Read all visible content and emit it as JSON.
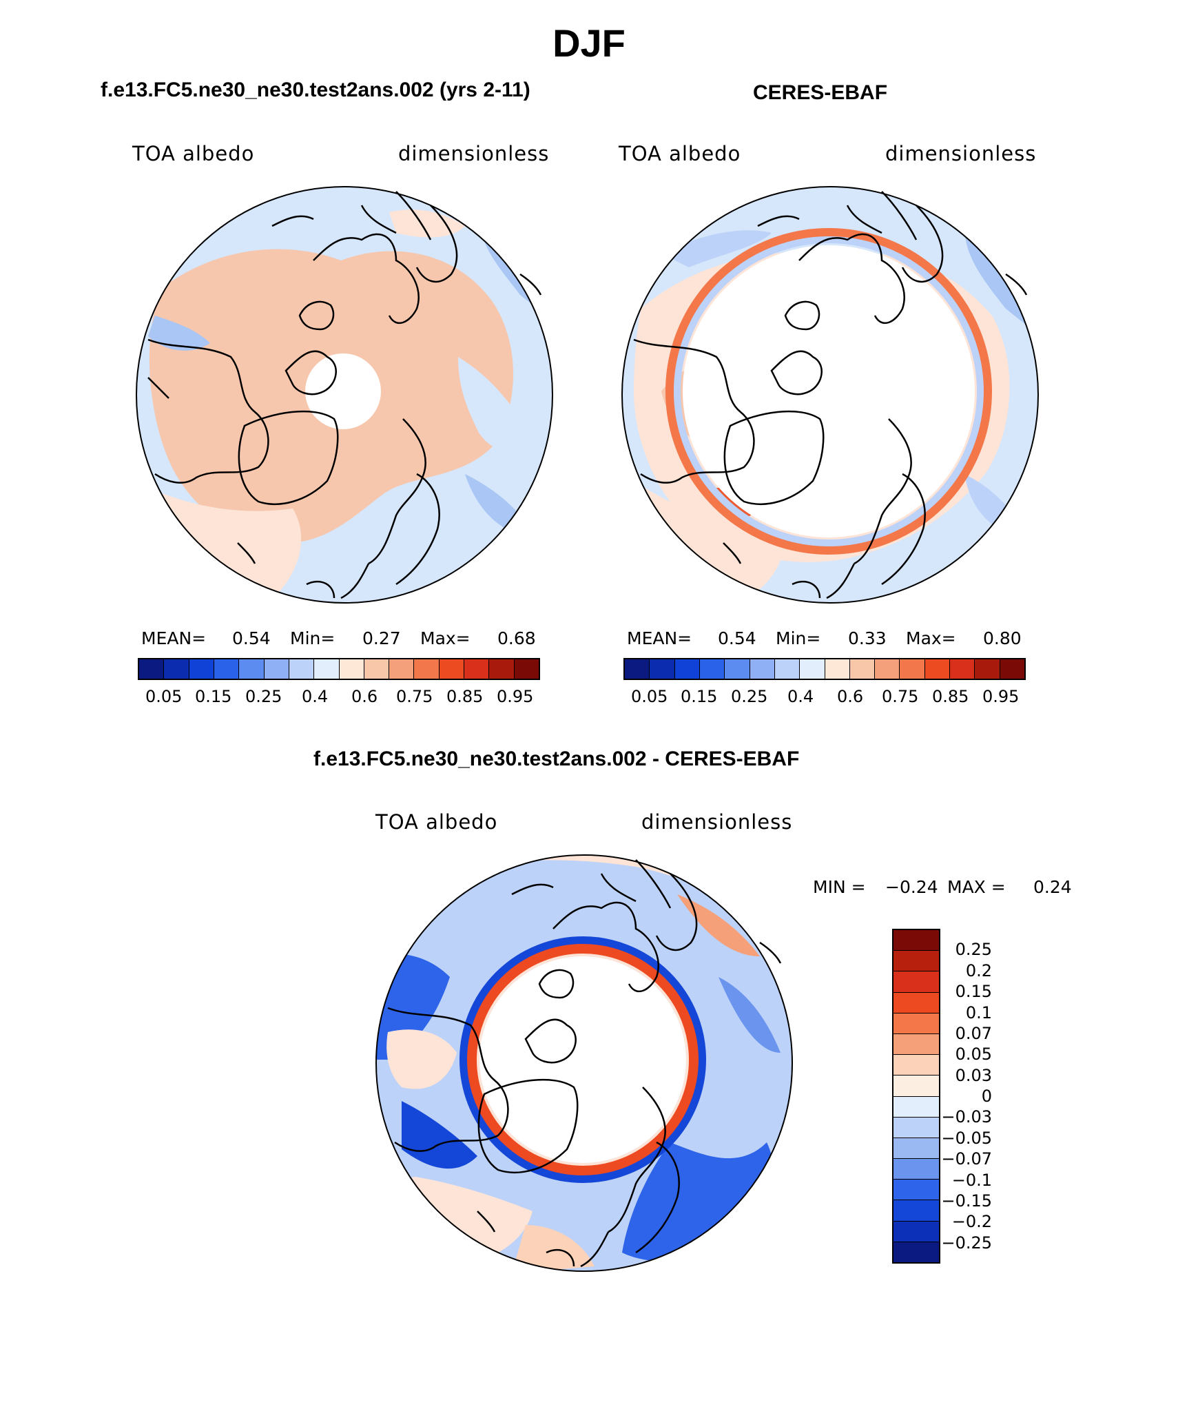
{
  "figure": {
    "title": "DJF",
    "panels": [
      {
        "heading": "f.e13.FC5.ne30_ne30.test2ans.002 (yrs 2-11)",
        "variable": "TOA albedo",
        "units": "dimensionless",
        "stats": {
          "mean_label": "MEAN=",
          "mean": "0.54",
          "min_label": "Min=",
          "min": "0.27",
          "max_label": "Max=",
          "max": "0.68"
        }
      },
      {
        "heading": "CERES-EBAF",
        "variable": "TOA albedo",
        "units": "dimensionless",
        "stats": {
          "mean_label": "MEAN=",
          "mean": "0.54",
          "min_label": "Min=",
          "min": "0.33",
          "max_label": "Max=",
          "max": "0.80"
        }
      },
      {
        "heading": "f.e13.FC5.ne30_ne30.test2ans.002 - CERES-EBAF",
        "variable": "TOA albedo",
        "units": "dimensionless",
        "minmax": {
          "min_label": "MIN =",
          "min": "−0.24",
          "max_label": "MAX =",
          "max": "0.24"
        }
      }
    ]
  },
  "chart_data": {
    "type": "heatmap",
    "projection": "north-polar-stereographic",
    "albedo_colorbar": {
      "colors": [
        "#0a1a80",
        "#0c2cb0",
        "#1142d8",
        "#2a62ea",
        "#5c8cf0",
        "#8fb0f4",
        "#bcd2f8",
        "#e2eefc",
        "#fde8d8",
        "#f8c6a8",
        "#f4a07a",
        "#f2774a",
        "#ec4a20",
        "#d8301a",
        "#a81a0c",
        "#7a0a06"
      ],
      "tick_labels": [
        "0.05",
        "0.15",
        "0.25",
        "0.4",
        "0.6",
        "0.75",
        "0.85",
        "0.95"
      ]
    },
    "difference_colorbar": {
      "colors": [
        "#7a0a06",
        "#b8200e",
        "#d8301a",
        "#ee4a22",
        "#f4774a",
        "#f6a07a",
        "#fcd2b8",
        "#fdeee2",
        "#e2eefc",
        "#bcd2f8",
        "#9ab8f2",
        "#6a94ee",
        "#2e64ea",
        "#1446d8",
        "#0c30b8",
        "#0a1a80"
      ],
      "tick_labels": [
        "0.25",
        "0.2",
        "0.15",
        "0.1",
        "0.07",
        "0.05",
        "0.03",
        "0",
        "−0.03",
        "−0.05",
        "−0.07",
        "−0.1",
        "−0.15",
        "−0.2",
        "−0.25"
      ]
    }
  }
}
